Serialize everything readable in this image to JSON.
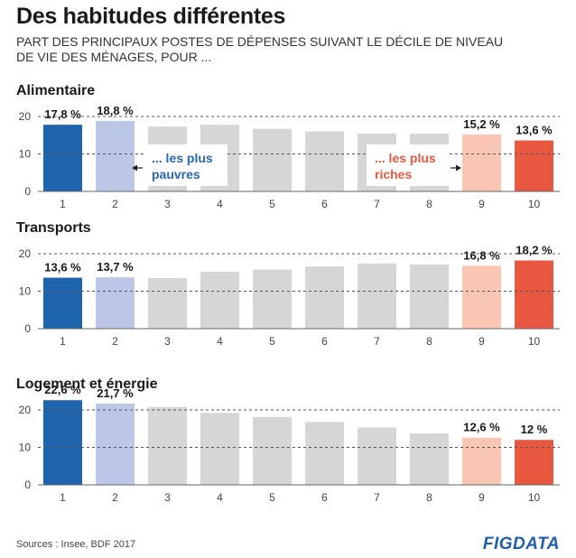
{
  "header": {
    "title": "Des habitudes différentes",
    "subtitle": "PART DES PRINCIPAUX POSTES DE DÉPENSES SUIVANT LE DÉCILE DE NIVEAU DE VIE DES MÉNAGES, POUR ..."
  },
  "colors": {
    "poorest": "#1f65ad",
    "second": "#bcc6e6",
    "middle": "#d6d6d6",
    "ninth": "#f8c6b2",
    "richest": "#e8573f",
    "annotation_poor": "#2a66b3",
    "annotation_rich": "#e8573f"
  },
  "annotations": {
    "poor": [
      "... les plus",
      "pauvres"
    ],
    "rich": [
      "... les plus",
      "riches"
    ]
  },
  "chart_data": [
    {
      "type": "bar",
      "title": "Alimentaire",
      "categories": [
        "1",
        "2",
        "3",
        "4",
        "5",
        "6",
        "7",
        "8",
        "9",
        "10"
      ],
      "values": [
        17.8,
        18.8,
        17.3,
        17.8,
        16.7,
        16.0,
        15.4,
        15.4,
        15.2,
        13.6
      ],
      "labels": [
        "17,8 %",
        "18,8 %",
        "",
        "",
        "",
        "",
        "",
        "",
        "15,2 %",
        "13,6 %"
      ],
      "ylim": [
        0,
        20
      ],
      "yticks": [
        "0",
        "10",
        "20"
      ]
    },
    {
      "type": "bar",
      "title": "Transports",
      "categories": [
        "1",
        "2",
        "3",
        "4",
        "5",
        "6",
        "7",
        "8",
        "9",
        "10"
      ],
      "values": [
        13.6,
        13.7,
        13.5,
        15.2,
        15.8,
        16.6,
        17.4,
        17.1,
        16.8,
        18.2
      ],
      "labels": [
        "13,6 %",
        "13,7 %",
        "",
        "",
        "",
        "",
        "",
        "",
        "16,8 %",
        "18,2 %"
      ],
      "ylim": [
        0,
        20
      ],
      "yticks": [
        "0",
        "10",
        "20"
      ]
    },
    {
      "type": "bar",
      "title": "Logement et énergie",
      "categories": [
        "1",
        "2",
        "3",
        "4",
        "5",
        "6",
        "7",
        "8",
        "9",
        "10"
      ],
      "values": [
        22.6,
        21.7,
        20.8,
        19.2,
        18.1,
        16.8,
        15.3,
        13.7,
        12.6,
        12.0
      ],
      "labels": [
        "22,6 %",
        "21,7 %",
        "",
        "",
        "",
        "",
        "",
        "",
        "12,6 %",
        "12 %"
      ],
      "ylim": [
        0,
        20
      ],
      "yticks": [
        "0",
        "10",
        "20"
      ]
    }
  ],
  "footer": {
    "source": "Sources : Insee, BDF 2017",
    "logo_fig": "FIG",
    "logo_data": "DATA"
  }
}
